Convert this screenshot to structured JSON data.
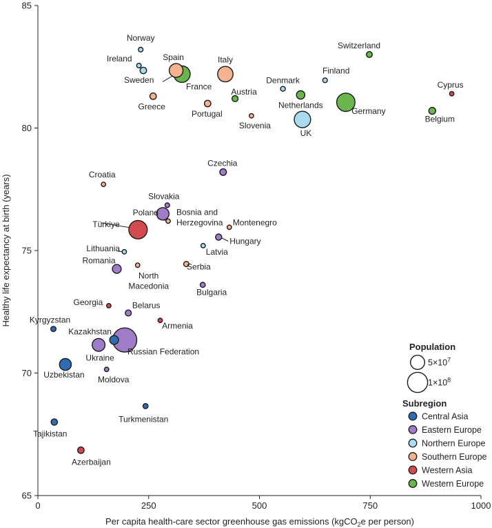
{
  "chart_data": {
    "type": "scatter",
    "title": "",
    "xlabel": "Per capita health-care sector greenhouse gas emissions (kgCO",
    "xlabel_sub": "2",
    "xlabel_tail": "e per person)",
    "ylabel": "Healthy life expectancy at birth (years)",
    "xlim": [
      0,
      1000
    ],
    "ylim": [
      65,
      85
    ],
    "xticks": [
      0,
      250,
      500,
      750,
      1000
    ],
    "yticks": [
      65,
      70,
      75,
      80,
      85
    ],
    "grid": false,
    "subregion_colors": {
      "Central Asia": "#2f6db3",
      "Eastern Europe": "#a07cc8",
      "Northern Europe": "#a8daf0",
      "Southern Europe": "#f5b38f",
      "Western Asia": "#d04a4e",
      "Western Europe": "#6ab54e"
    },
    "points": [
      {
        "country": "Norway",
        "x": 232,
        "y": 83.2,
        "pop": 5400000.0,
        "subregion": "Northern Europe"
      },
      {
        "country": "Ireland",
        "x": 228,
        "y": 82.55,
        "pop": 5000000.0,
        "subregion": "Northern Europe"
      },
      {
        "country": "Sweden",
        "x": 238,
        "y": 82.35,
        "pop": 10400000.0,
        "subregion": "Northern Europe"
      },
      {
        "country": "Spain",
        "x": 312,
        "y": 82.35,
        "pop": 47000000.0,
        "subregion": "Southern Europe"
      },
      {
        "country": "France",
        "x": 325,
        "y": 82.2,
        "pop": 68000000.0,
        "subregion": "Western Europe"
      },
      {
        "country": "Italy",
        "x": 423,
        "y": 82.2,
        "pop": 59000000.0,
        "subregion": "Southern Europe"
      },
      {
        "country": "Switzerland",
        "x": 748,
        "y": 83.0,
        "pop": 8700000.0,
        "subregion": "Western Europe"
      },
      {
        "country": "Greece",
        "x": 260,
        "y": 81.3,
        "pop": 10400000.0,
        "subregion": "Southern Europe"
      },
      {
        "country": "Portugal",
        "x": 383,
        "y": 81.0,
        "pop": 10300000.0,
        "subregion": "Southern Europe"
      },
      {
        "country": "Austria",
        "x": 445,
        "y": 81.2,
        "pop": 9000000.0,
        "subregion": "Western Europe"
      },
      {
        "country": "Slovenia",
        "x": 482,
        "y": 80.5,
        "pop": 2100000.0,
        "subregion": "Southern Europe"
      },
      {
        "country": "Denmark",
        "x": 553,
        "y": 81.6,
        "pop": 5900000.0,
        "subregion": "Northern Europe"
      },
      {
        "country": "Netherlands",
        "x": 593,
        "y": 81.35,
        "pop": 17500000.0,
        "subregion": "Western Europe"
      },
      {
        "country": "Finland",
        "x": 648,
        "y": 81.95,
        "pop": 5500000.0,
        "subregion": "Northern Europe"
      },
      {
        "country": "UK",
        "x": 597,
        "y": 80.35,
        "pop": 67000000.0,
        "subregion": "Northern Europe"
      },
      {
        "country": "Germany",
        "x": 695,
        "y": 81.05,
        "pop": 83000000.0,
        "subregion": "Western Europe"
      },
      {
        "country": "Cyprus",
        "x": 934,
        "y": 81.4,
        "pop": 1200000.0,
        "subregion": "Western Asia"
      },
      {
        "country": "Belgium",
        "x": 890,
        "y": 80.7,
        "pop": 11600000.0,
        "subregion": "Western Europe"
      },
      {
        "country": "Czechia",
        "x": 418,
        "y": 78.2,
        "pop": 10700000.0,
        "subregion": "Eastern Europe"
      },
      {
        "country": "Croatia",
        "x": 148,
        "y": 77.7,
        "pop": 3900000.0,
        "subregion": "Southern Europe"
      },
      {
        "country": "Slovakia",
        "x": 292,
        "y": 76.85,
        "pop": 5400000.0,
        "subregion": "Eastern Europe"
      },
      {
        "country": "Poland",
        "x": 282,
        "y": 76.5,
        "pop": 38000000.0,
        "subregion": "Eastern Europe"
      },
      {
        "country": "Bosnia and Herzegovina",
        "x": 294,
        "y": 76.2,
        "pop": 3200000.0,
        "subregion": "Southern Europe"
      },
      {
        "country": "Türkiye",
        "x": 226,
        "y": 75.85,
        "pop": 85000000.0,
        "subregion": "Western Asia"
      },
      {
        "country": "Montenegro",
        "x": 432,
        "y": 75.95,
        "pop": 600000.0,
        "subregion": "Southern Europe"
      },
      {
        "country": "Hungary",
        "x": 408,
        "y": 75.55,
        "pop": 9700000.0,
        "subregion": "Eastern Europe"
      },
      {
        "country": "Lithuania",
        "x": 195,
        "y": 74.95,
        "pop": 2800000.0,
        "subregion": "Northern Europe"
      },
      {
        "country": "Latvia",
        "x": 373,
        "y": 75.2,
        "pop": 1900000.0,
        "subregion": "Northern Europe"
      },
      {
        "country": "Romania",
        "x": 178,
        "y": 74.25,
        "pop": 19000000.0,
        "subregion": "Eastern Europe"
      },
      {
        "country": "North Macedonia",
        "x": 225,
        "y": 74.4,
        "pop": 2100000.0,
        "subregion": "Southern Europe"
      },
      {
        "country": "Serbia",
        "x": 335,
        "y": 74.45,
        "pop": 6700000.0,
        "subregion": "Southern Europe"
      },
      {
        "country": "Bulgaria",
        "x": 372,
        "y": 73.6,
        "pop": 6500000.0,
        "subregion": "Eastern Europe"
      },
      {
        "country": "Georgia",
        "x": 160,
        "y": 72.75,
        "pop": 3700000.0,
        "subregion": "Western Asia"
      },
      {
        "country": "Belarus",
        "x": 204,
        "y": 72.45,
        "pop": 9200000.0,
        "subregion": "Eastern Europe"
      },
      {
        "country": "Armenia",
        "x": 276,
        "y": 72.15,
        "pop": 2800000.0,
        "subregion": "Western Asia"
      },
      {
        "country": "Kyrgyzstan",
        "x": 35,
        "y": 71.8,
        "pop": 6900000.0,
        "subregion": "Central Asia"
      },
      {
        "country": "Kazakhstan",
        "x": 172,
        "y": 71.35,
        "pop": 19500000.0,
        "subregion": "Central Asia"
      },
      {
        "country": "Russian Federation",
        "x": 196,
        "y": 71.35,
        "pop": 144000000.0,
        "subregion": "Eastern Europe"
      },
      {
        "country": "Ukraine",
        "x": 137,
        "y": 71.15,
        "pop": 41000000.0,
        "subregion": "Eastern Europe"
      },
      {
        "country": "Uzbekistan",
        "x": 62,
        "y": 70.35,
        "pop": 35000000.0,
        "subregion": "Central Asia"
      },
      {
        "country": "Moldova",
        "x": 155,
        "y": 70.15,
        "pop": 2600000.0,
        "subregion": "Eastern Europe"
      },
      {
        "country": "Turkmenistan",
        "x": 243,
        "y": 68.65,
        "pop": 6300000.0,
        "subregion": "Central Asia"
      },
      {
        "country": "Tajikistan",
        "x": 37,
        "y": 68.0,
        "pop": 9900000.0,
        "subregion": "Central Asia"
      },
      {
        "country": "Azerbaijan",
        "x": 97,
        "y": 66.85,
        "pop": 10200000.0,
        "subregion": "Western Asia"
      }
    ],
    "legend": {
      "population_title": "Population",
      "population_items": [
        {
          "label": "5×10",
          "exp": "7",
          "pop": 50000000.0
        },
        {
          "label": "1×10",
          "exp": "8",
          "pop": 100000000.0
        }
      ],
      "subregion_title": "Subregion",
      "subregion_items": [
        "Central Asia",
        "Eastern Europe",
        "Northern Europe",
        "Southern Europe",
        "Western Asia",
        "Western Europe"
      ],
      "placement": "bottom-right"
    }
  }
}
